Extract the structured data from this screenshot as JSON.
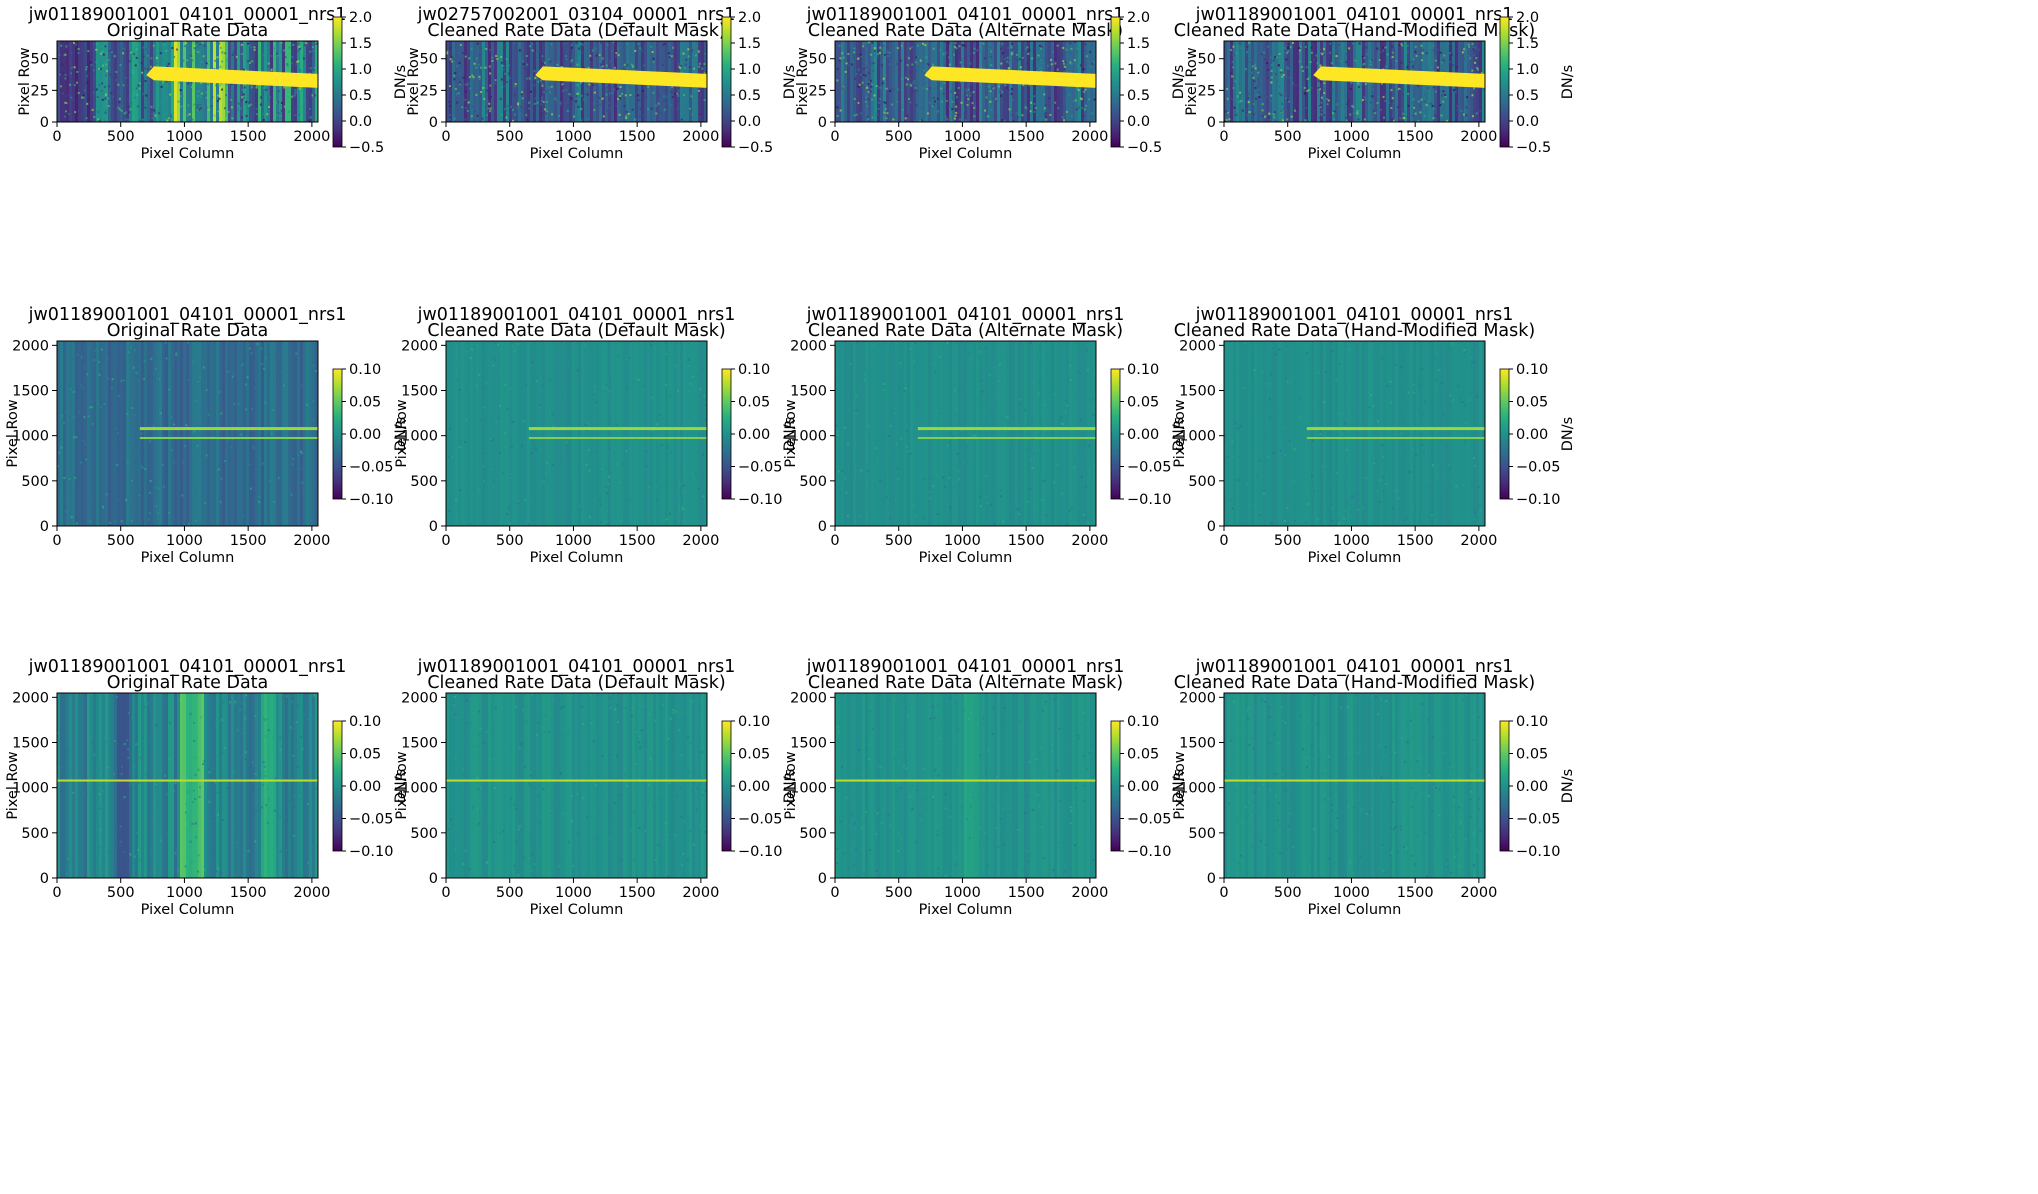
{
  "figure": {
    "columns": [
      "Original Rate Data",
      "Cleaned Rate Data (Default Mask)",
      "Cleaned Rate Data (Alternate Mask)",
      "Cleaned Rate Data (Hand-Modified Mask)"
    ]
  },
  "colormap": {
    "name": "viridis",
    "stops": [
      "#440154",
      "#472d7b",
      "#3b528b",
      "#2c728e",
      "#21918c",
      "#28ae80",
      "#5ec962",
      "#addc30",
      "#fde725"
    ]
  },
  "chart_data": [
    {
      "type": "heatmap",
      "row": 0,
      "col": 0,
      "title": [
        "jw01189001001_04101_00001_nrs1",
        "Original Rate Data"
      ],
      "xlabel": "Pixel Column",
      "ylabel": "Pixel Row",
      "xlim": [
        0,
        2048
      ],
      "ylim": [
        0,
        64
      ],
      "xticks": [
        0,
        500,
        1000,
        1500,
        2000
      ],
      "yticks": [
        0,
        25,
        50
      ],
      "colorbar": {
        "label": "DN/s",
        "range": [
          -0.5,
          2.0
        ],
        "ticks": [
          "2.0",
          "1.5",
          "1.0",
          "0.5",
          "0.0",
          "−0.5"
        ]
      },
      "features": "bright spectral trace from x≈700 to 2048 near row 33; strong vertical striping; dark columns x<300"
    },
    {
      "type": "heatmap",
      "row": 0,
      "col": 1,
      "title": [
        "jw02757002001_03104_00001_nrs1",
        "Cleaned Rate Data (Default Mask)"
      ],
      "xlabel": "Pixel Column",
      "ylabel": "Pixel Row",
      "xlim": [
        0,
        2048
      ],
      "ylim": [
        0,
        64
      ],
      "xticks": [
        0,
        500,
        1000,
        1500,
        2000
      ],
      "yticks": [
        0,
        25,
        50
      ],
      "colorbar": {
        "label": "DN/s",
        "range": [
          -0.5,
          2.0
        ],
        "ticks": [
          "2.0",
          "1.5",
          "1.0",
          "0.5",
          "0.0",
          "−0.5"
        ]
      },
      "features": "bright spectral trace from x≈700 to 2048 near row 33; noise background"
    },
    {
      "type": "heatmap",
      "row": 0,
      "col": 2,
      "title": [
        "jw01189001001_04101_00001_nrs1",
        "Cleaned Rate Data (Alternate Mask)"
      ],
      "xlabel": "Pixel Column",
      "ylabel": "Pixel Row",
      "xlim": [
        0,
        2048
      ],
      "ylim": [
        0,
        64
      ],
      "xticks": [
        0,
        500,
        1000,
        1500,
        2000
      ],
      "yticks": [
        0,
        25,
        50
      ],
      "colorbar": {
        "label": "DN/s",
        "range": [
          -0.5,
          2.0
        ],
        "ticks": [
          "2.0",
          "1.5",
          "1.0",
          "0.5",
          "0.0",
          "−0.5"
        ]
      },
      "features": "bright spectral trace from x≈700 to 2048 near row 33; noise background"
    },
    {
      "type": "heatmap",
      "row": 0,
      "col": 3,
      "title": [
        "jw01189001001_04101_00001_nrs1",
        "Cleaned Rate Data (Hand-Modified Mask)"
      ],
      "xlabel": "Pixel Column",
      "ylabel": "Pixel Row",
      "xlim": [
        0,
        2048
      ],
      "ylim": [
        0,
        64
      ],
      "xticks": [
        0,
        500,
        1000,
        1500,
        2000
      ],
      "yticks": [
        0,
        25,
        50
      ],
      "colorbar": {
        "label": "DN/s",
        "range": [
          -0.5,
          2.0
        ],
        "ticks": [
          "2.0",
          "1.5",
          "1.0",
          "0.5",
          "0.0",
          "−0.5"
        ]
      },
      "features": "bright spectral trace from x≈700 to 2048 near row 33; noise background"
    },
    {
      "type": "heatmap",
      "row": 1,
      "col": 0,
      "title": [
        "jw01189001001_04101_00001_nrs1",
        "Original Rate Data"
      ],
      "xlabel": "Pixel Column",
      "ylabel": "Pixel Row",
      "xlim": [
        0,
        2048
      ],
      "ylim": [
        0,
        2048
      ],
      "xticks": [
        0,
        500,
        1000,
        1500,
        2000
      ],
      "yticks": [
        0,
        500,
        1000,
        1500,
        2000
      ],
      "colorbar": {
        "label": "DN/s",
        "range": [
          -0.1,
          0.1
        ],
        "ticks": [
          "0.10",
          "0.05",
          "0.00",
          "−0.05",
          "−0.10"
        ]
      },
      "features": "two horizontal traces near rows 1080 and 970 from x≈650; vertical striping"
    },
    {
      "type": "heatmap",
      "row": 1,
      "col": 1,
      "title": [
        "jw01189001001_04101_00001_nrs1",
        "Cleaned Rate Data (Default Mask)"
      ],
      "xlabel": "Pixel Column",
      "ylabel": "Pixel Row",
      "xlim": [
        0,
        2048
      ],
      "ylim": [
        0,
        2048
      ],
      "xticks": [
        0,
        500,
        1000,
        1500,
        2000
      ],
      "yticks": [
        0,
        500,
        1000,
        1500,
        2000
      ],
      "colorbar": {
        "label": "DN/s",
        "range": [
          -0.1,
          0.1
        ],
        "ticks": [
          "0.10",
          "0.05",
          "0.00",
          "−0.05",
          "−0.10"
        ]
      },
      "features": "two horizontal traces near rows 1080 and 970 from x≈650; flat background"
    },
    {
      "type": "heatmap",
      "row": 1,
      "col": 2,
      "title": [
        "jw01189001001_04101_00001_nrs1",
        "Cleaned Rate Data (Alternate Mask)"
      ],
      "xlabel": "Pixel Column",
      "ylabel": "Pixel Row",
      "xlim": [
        0,
        2048
      ],
      "ylim": [
        0,
        2048
      ],
      "xticks": [
        0,
        500,
        1000,
        1500,
        2000
      ],
      "yticks": [
        0,
        500,
        1000,
        1500,
        2000
      ],
      "colorbar": {
        "label": "DN/s",
        "range": [
          -0.1,
          0.1
        ],
        "ticks": [
          "0.10",
          "0.05",
          "0.00",
          "−0.05",
          "−0.10"
        ]
      },
      "features": "two horizontal traces near rows 1080 and 970 from x≈650; flat background"
    },
    {
      "type": "heatmap",
      "row": 1,
      "col": 3,
      "title": [
        "jw01189001001_04101_00001_nrs1",
        "Cleaned Rate Data (Hand-Modified Mask)"
      ],
      "xlabel": "Pixel Column",
      "ylabel": "Pixel Row",
      "xlim": [
        0,
        2048
      ],
      "ylim": [
        0,
        2048
      ],
      "xticks": [
        0,
        500,
        1000,
        1500,
        2000
      ],
      "yticks": [
        0,
        500,
        1000,
        1500,
        2000
      ],
      "colorbar": {
        "label": "DN/s",
        "range": [
          -0.1,
          0.1
        ],
        "ticks": [
          "0.10",
          "0.05",
          "0.00",
          "−0.05",
          "−0.10"
        ]
      },
      "features": "two horizontal traces near rows 1080 and 970 from x≈650; flat background"
    },
    {
      "type": "heatmap",
      "row": 2,
      "col": 0,
      "title": [
        "jw01189001001_04101_00001_nrs1",
        "Original Rate Data"
      ],
      "xlabel": "Pixel Column",
      "ylabel": "Pixel Row",
      "xlim": [
        0,
        2048
      ],
      "ylim": [
        0,
        2048
      ],
      "xticks": [
        0,
        500,
        1000,
        1500,
        2000
      ],
      "yticks": [
        0,
        500,
        1000,
        1500,
        2000
      ],
      "colorbar": {
        "label": "DN/s",
        "range": [
          -0.1,
          0.1
        ],
        "ticks": [
          "0.10",
          "0.05",
          "0.00",
          "−0.05",
          "−0.10"
        ]
      },
      "features": "single horizontal trace near row 1080 across full width; strong vertical banding"
    },
    {
      "type": "heatmap",
      "row": 2,
      "col": 1,
      "title": [
        "jw01189001001_04101_00001_nrs1",
        "Cleaned Rate Data (Default Mask)"
      ],
      "xlabel": "Pixel Column",
      "ylabel": "Pixel Row",
      "xlim": [
        0,
        2048
      ],
      "ylim": [
        0,
        2048
      ],
      "xticks": [
        0,
        500,
        1000,
        1500,
        2000
      ],
      "yticks": [
        0,
        500,
        1000,
        1500,
        2000
      ],
      "colorbar": {
        "label": "DN/s",
        "range": [
          -0.1,
          0.1
        ],
        "ticks": [
          "0.10",
          "0.05",
          "0.00",
          "−0.05",
          "−0.10"
        ]
      },
      "features": "single horizontal trace near row 1080; flat noisy background"
    },
    {
      "type": "heatmap",
      "row": 2,
      "col": 2,
      "title": [
        "jw01189001001_04101_00001_nrs1",
        "Cleaned Rate Data (Alternate Mask)"
      ],
      "xlabel": "Pixel Column",
      "ylabel": "Pixel Row",
      "xlim": [
        0,
        2048
      ],
      "ylim": [
        0,
        2048
      ],
      "xticks": [
        0,
        500,
        1000,
        1500,
        2000
      ],
      "yticks": [
        0,
        500,
        1000,
        1500,
        2000
      ],
      "colorbar": {
        "label": "DN/s",
        "range": [
          -0.1,
          0.1
        ],
        "ticks": [
          "0.10",
          "0.05",
          "0.00",
          "−0.05",
          "−0.10"
        ]
      },
      "features": "single horizontal trace near row 1080; faint residual vertical band near x≈1050"
    },
    {
      "type": "heatmap",
      "row": 2,
      "col": 3,
      "title": [
        "jw01189001001_04101_00001_nrs1",
        "Cleaned Rate Data (Hand-Modified Mask)"
      ],
      "xlabel": "Pixel Column",
      "ylabel": "Pixel Row",
      "xlim": [
        0,
        2048
      ],
      "ylim": [
        0,
        2048
      ],
      "xticks": [
        0,
        500,
        1000,
        1500,
        2000
      ],
      "yticks": [
        0,
        500,
        1000,
        1500,
        2000
      ],
      "colorbar": {
        "label": "DN/s",
        "range": [
          -0.1,
          0.1
        ],
        "ticks": [
          "0.10",
          "0.05",
          "0.00",
          "−0.05",
          "−0.10"
        ]
      },
      "features": "single horizontal trace near row 1080; flat noisy background"
    }
  ]
}
